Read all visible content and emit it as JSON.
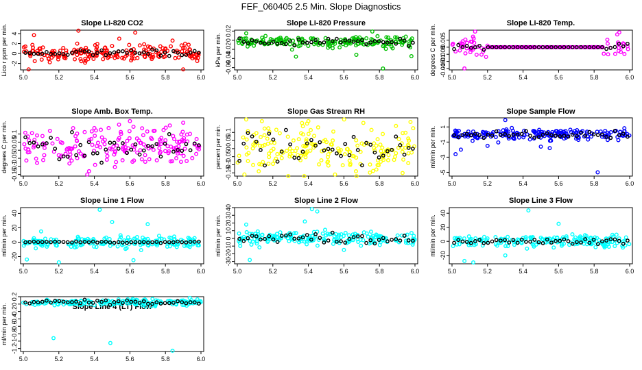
{
  "title": "FEF_060405  2.5 Min. Slope Diagnostics",
  "x_ticks": [
    "5.0",
    "5.2",
    "5.4",
    "5.6",
    "5.8",
    "6.0"
  ],
  "chart_data": [
    {
      "type": "scatter",
      "title": "Slope Li-820 CO2",
      "ylabel": "Lico r ppm per min.",
      "xlim": [
        5.0,
        6.0
      ],
      "ylim": [
        -3.3,
        4.7
      ],
      "yticks": [
        -2,
        0,
        2,
        4
      ],
      "color": "#ff0000",
      "center": 0.1,
      "spread": 0.9,
      "black_spread": 0.25,
      "outliers": [
        [
          5.03,
          -3.2
        ],
        [
          5.06,
          3.7
        ],
        [
          5.31,
          4.6
        ],
        [
          5.54,
          3.0
        ],
        [
          5.63,
          4.2
        ],
        [
          5.84,
          2.6
        ],
        [
          5.9,
          -3.2
        ]
      ]
    },
    {
      "type": "scatter",
      "title": "Slope Li-820 Pressure",
      "ylabel": "kPa per min.",
      "xlim": [
        5.0,
        6.0
      ],
      "ylim": [
        -0.065,
        0.022
      ],
      "yticks": [
        -0.06,
        -0.04,
        -0.02,
        0,
        0.02
      ],
      "color": "#00c000",
      "center": -0.004,
      "spread": 0.006,
      "black_spread": 0.004,
      "outliers": [
        [
          5.05,
          0.015
        ],
        [
          5.33,
          -0.036
        ],
        [
          5.67,
          -0.032
        ],
        [
          5.82,
          -0.062
        ],
        [
          5.98,
          -0.035
        ],
        [
          5.76,
          0.019
        ]
      ]
    },
    {
      "type": "scatter",
      "title": "Slope Li-820 Temp.",
      "ylabel": "degrees C per min.",
      "xlim": [
        5.0,
        6.0
      ],
      "ylim": [
        -0.016,
        0.012
      ],
      "yticks": [
        -0.015,
        -0.01,
        -0.005,
        0,
        0.005
      ],
      "color": "#ff00ff",
      "center": 0.0,
      "spread": 0.004,
      "black_spread": 0.002,
      "flat_range": [
        5.2,
        5.85
      ],
      "outliers": [
        [
          5.02,
          -0.003
        ],
        [
          5.07,
          -0.015
        ],
        [
          5.13,
          0.011
        ],
        [
          5.93,
          0.009
        ]
      ]
    },
    {
      "type": "scatter",
      "title": "Slope Amb. Box Temp.",
      "ylabel": "degrees C per min.",
      "xlim": [
        5.0,
        6.0
      ],
      "ylim": [
        -0.16,
        0.2
      ],
      "yticks": [
        -0.15,
        -0.1,
        -0.05,
        0,
        0.05,
        0.1
      ],
      "color": "#ff00ff",
      "center": 0.02,
      "spread": 0.06,
      "black_spread": 0.04,
      "outliers": [
        [
          5.36,
          -0.15
        ],
        [
          5.6,
          0.18
        ],
        [
          5.9,
          0.17
        ],
        [
          5.37,
          -0.13
        ]
      ]
    },
    {
      "type": "scatter",
      "title": "Slope Gas Stream RH",
      "ylabel": "percent per min.",
      "xlim": [
        5.0,
        6.0
      ],
      "ylim": [
        -0.17,
        0.19
      ],
      "yticks": [
        -0.15,
        -0.1,
        -0.05,
        0,
        0.05,
        0.1
      ],
      "color": "#ffff00",
      "center": 0.0,
      "spread": 0.07,
      "black_spread": 0.06,
      "outliers": [
        [
          5.05,
          0.18
        ],
        [
          5.04,
          -0.16
        ],
        [
          5.4,
          0.17
        ],
        [
          5.55,
          -0.16
        ]
      ]
    },
    {
      "type": "scatter",
      "title": "Slope Sample Flow",
      "ylabel": "ml/min per min.",
      "xlim": [
        5.0,
        6.0
      ],
      "ylim": [
        -5.5,
        2.2
      ],
      "yticks": [
        -5,
        -3,
        -1,
        1
      ],
      "color": "#0000ff",
      "center": 0.0,
      "spread": 0.35,
      "black_spread": 0.2,
      "outliers": [
        [
          5.02,
          -2.6
        ],
        [
          5.05,
          -2.0
        ],
        [
          5.3,
          1.9
        ],
        [
          5.55,
          -1.8
        ],
        [
          5.82,
          -5.0
        ],
        [
          5.2,
          -1.5
        ],
        [
          5.5,
          -1.6
        ]
      ]
    },
    {
      "type": "scatter",
      "title": "Slope Line 1 Flow",
      "ylabel": "ml/min per min.",
      "xlim": [
        5.0,
        6.0
      ],
      "ylim": [
        -30,
        48
      ],
      "yticks": [
        -20,
        0,
        20,
        40
      ],
      "color": "#00ffff",
      "center": 0.0,
      "spread": 4,
      "black_spread": 0.5,
      "outliers": [
        [
          5.02,
          -24
        ],
        [
          5.2,
          -28
        ],
        [
          5.43,
          45
        ],
        [
          5.5,
          28
        ],
        [
          5.62,
          -25
        ],
        [
          5.7,
          25
        ],
        [
          5.1,
          15
        ]
      ]
    },
    {
      "type": "scatter",
      "title": "Slope Line 2 Flow",
      "ylabel": "ml/min per min.",
      "xlim": [
        5.0,
        6.0
      ],
      "ylim": [
        -33,
        40
      ],
      "yticks": [
        -30,
        -20,
        -10,
        0,
        10,
        20,
        30,
        40
      ],
      "color": "#00ffff",
      "center": 0.0,
      "spread": 4,
      "black_spread": 3,
      "outliers": [
        [
          5.07,
          -28
        ],
        [
          5.42,
          38
        ],
        [
          5.45,
          35
        ],
        [
          5.6,
          -15
        ],
        [
          5.38,
          22
        ],
        [
          5.05,
          18
        ]
      ]
    },
    {
      "type": "scatter",
      "title": "Slope Line 3 Flow",
      "ylabel": "ml/min per min.",
      "xlim": [
        5.0,
        6.0
      ],
      "ylim": [
        -32,
        48
      ],
      "yticks": [
        -20,
        0,
        20,
        40
      ],
      "color": "#00ffff",
      "center": 0.0,
      "spread": 4,
      "black_spread": 2,
      "outliers": [
        [
          5.07,
          -28
        ],
        [
          5.43,
          44
        ],
        [
          5.12,
          -30
        ],
        [
          5.6,
          25
        ],
        [
          5.3,
          -20
        ]
      ]
    },
    {
      "type": "scatter",
      "title": "Slope Line 4 (LT) Flow",
      "ylabel": "ml/min per min.",
      "xlim": [
        5.0,
        6.0
      ],
      "ylim": [
        -1.28,
        0.2
      ],
      "yticks": [
        -1.2,
        -1.0,
        -0.8,
        -0.6,
        -0.4,
        -0.2,
        0,
        0.2
      ],
      "color": "#00ffff",
      "center": 0.05,
      "spread": 0.04,
      "black_spread": 0.03,
      "outliers": [
        [
          5.17,
          -0.92
        ],
        [
          5.49,
          -1.05
        ],
        [
          5.84,
          -1.26
        ]
      ]
    }
  ]
}
